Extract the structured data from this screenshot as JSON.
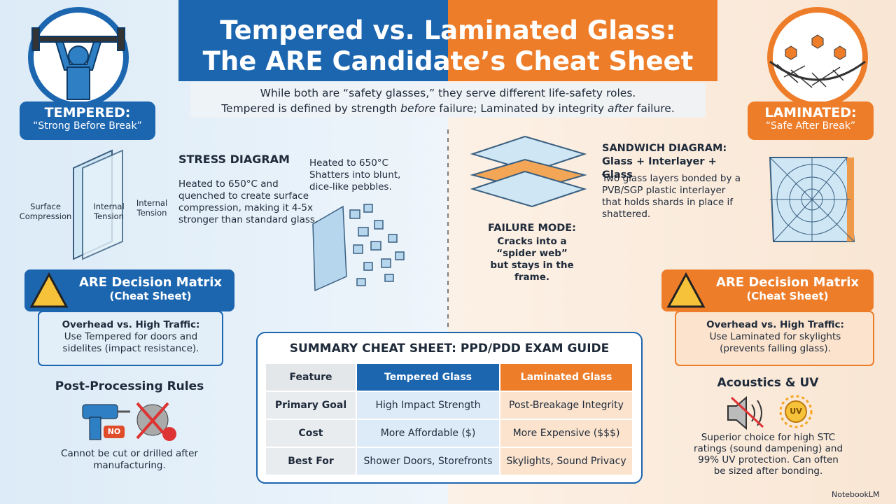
{
  "header": {
    "title": [
      "Tempered vs. Laminated Glass:",
      "The ARE Candidate’s Cheat Sheet"
    ],
    "subtitle": {
      "line1": "While both are “safety glasses,” they serve different life-safety roles.",
      "line2": [
        "Tempered is defined by strength ",
        "before",
        " failure; Laminated by integrity ",
        "after",
        " failure."
      ]
    }
  },
  "tempered": {
    "badge": {
      "label": "TEMPERED:",
      "tagline": "“Strong Before Break”"
    },
    "stress": {
      "heading": "STRESS DIAGRAM",
      "labels": [
        "Surface Compression",
        "Internal Tension",
        "Internal Tension"
      ],
      "body": "Heated to 650°C and quenched to create surface compression, making it 4-5x stronger than standard glass."
    },
    "shatter": {
      "line1": "Heated to 650°C",
      "line2": "Shatters into blunt, dice-like pebbles."
    },
    "matrix": {
      "title": "ARE Decision Matrix",
      "subtitle": "(Cheat Sheet)",
      "heading": "Overhead vs. High Traffic:",
      "body": "Use Tempered for doors and sidelites (impact resistance)."
    },
    "post": {
      "heading": "Post-Processing Rules",
      "badge": "NO",
      "body": "Cannot be cut or drilled after manufacturing."
    }
  },
  "laminated": {
    "badge": {
      "label": "LAMINATED:",
      "tagline": "“Safe After Break”"
    },
    "sandwich": {
      "heading": "SANDWICH DIAGRAM: Glass + Interlayer + Glass",
      "body": "Two glass layers bonded by a PVB/SGP plastic interlayer that holds shards in place if shattered."
    },
    "failure": {
      "heading": "FAILURE MODE:",
      "body": "Cracks into a “spider web” but stays in the frame."
    },
    "matrix": {
      "title": "ARE Decision Matrix",
      "subtitle": "(Cheat Sheet)",
      "heading": "Overhead vs. High Traffic:",
      "body": "Use Laminated for skylights (prevents falling glass)."
    },
    "acoustics": {
      "heading": "Acoustics & UV",
      "icon": "UV",
      "body": "Superior choice for high STC ratings (sound dampening) and 99% UV protection. Can often be sized after bonding."
    }
  },
  "table": {
    "title": "SUMMARY CHEAT SHEET: PPD/PDD EXAM GUIDE",
    "header": [
      "Feature",
      "Tempered Glass",
      "Laminated Glass"
    ],
    "rows": [
      [
        "Primary Goal",
        "High Impact Strength",
        "Post-Breakage Integrity"
      ],
      [
        "Cost",
        "More Affordable ($)",
        "More Expensive ($$$)"
      ],
      [
        "Best For",
        "Shower Doors, Storefronts",
        "Skylights, Sound Privacy"
      ]
    ]
  },
  "footer": {
    "brand": "NotebookLM"
  }
}
